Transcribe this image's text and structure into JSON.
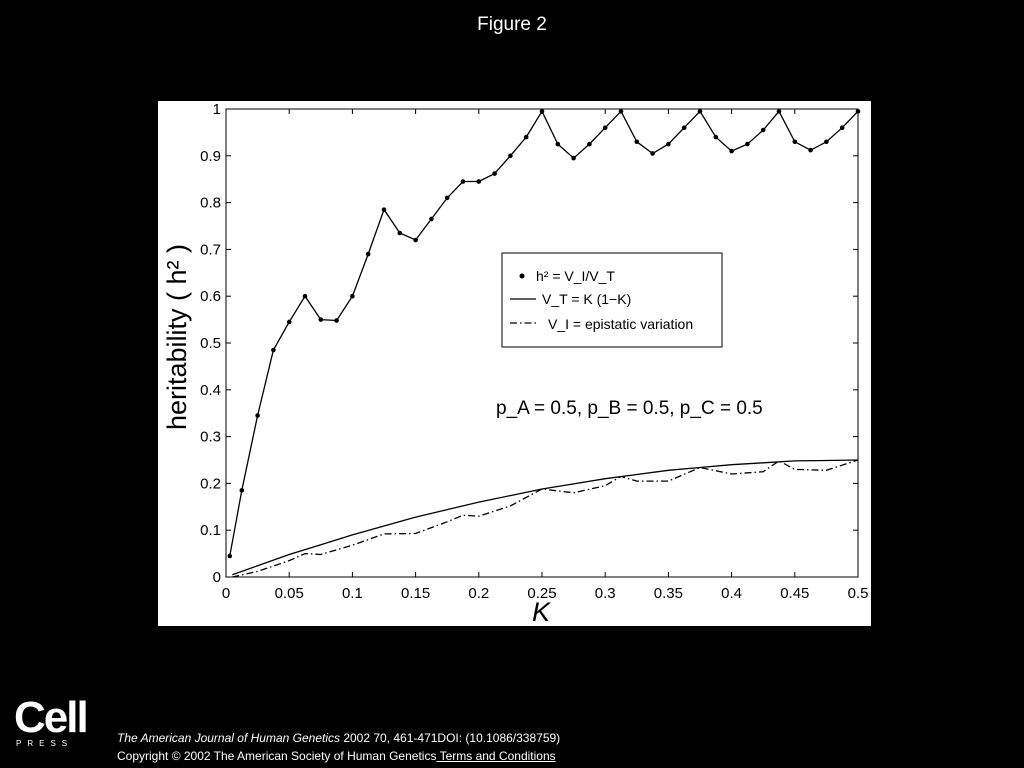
{
  "slide": {
    "title": "Figure 2"
  },
  "footer": {
    "logo_word": "Cell",
    "logo_sub": "PRESS",
    "journal": "The American Journal of Human Genetics",
    "citation_rest": " 2002 70, 461-471DOI: (10.1086/338759)",
    "copyright": "Copyright © 2002 The American Society of Human Genetics",
    "terms_link": " Terms and Conditions"
  },
  "chart_data": {
    "type": "line",
    "xlabel": "K",
    "ylabel": "heritability ( h² )",
    "xlim": [
      0,
      0.5
    ],
    "ylim": [
      0,
      1
    ],
    "xticks": [
      "0",
      "0.05",
      "0.1",
      "0.15",
      "0.2",
      "0.25",
      "0.3",
      "0.35",
      "0.4",
      "0.45",
      "0.5"
    ],
    "yticks": [
      "0",
      "0.1",
      "0.2",
      "0.3",
      "0.4",
      "0.5",
      "0.6",
      "0.7",
      "0.8",
      "0.9",
      "1"
    ],
    "grid": false,
    "legend_position": "center-right",
    "legend": {
      "h2": "h² = V_I/V_T",
      "vt": "V_T = K (1−K)",
      "vi": "V_I = epistatic variation"
    },
    "annotation": "p_A = 0.5, p_B = 0.5, p_C = 0.5",
    "series": [
      {
        "id": "h2",
        "style": "solid-with-dots",
        "x": [
          0.003,
          0.0125,
          0.025,
          0.0375,
          0.05,
          0.0625,
          0.075,
          0.0875,
          0.1,
          0.1125,
          0.125,
          0.1375,
          0.15,
          0.1625,
          0.175,
          0.1875,
          0.2,
          0.2125,
          0.225,
          0.2375,
          0.25,
          0.2625,
          0.275,
          0.2875,
          0.3,
          0.3125,
          0.325,
          0.3375,
          0.35,
          0.3625,
          0.375,
          0.3875,
          0.4,
          0.4125,
          0.425,
          0.4375,
          0.45,
          0.4625,
          0.475,
          0.4875,
          0.5
        ],
        "y": [
          0.045,
          0.185,
          0.345,
          0.485,
          0.545,
          0.6,
          0.55,
          0.548,
          0.6,
          0.69,
          0.785,
          0.735,
          0.72,
          0.765,
          0.81,
          0.845,
          0.845,
          0.862,
          0.9,
          0.94,
          0.995,
          0.925,
          0.895,
          0.925,
          0.96,
          0.995,
          0.93,
          0.905,
          0.925,
          0.96,
          0.995,
          0.94,
          0.91,
          0.925,
          0.955,
          0.995,
          0.93,
          0.912,
          0.93,
          0.96,
          0.995
        ]
      },
      {
        "id": "vt",
        "style": "solid",
        "x": [
          0.005,
          0.025,
          0.05,
          0.075,
          0.1,
          0.125,
          0.15,
          0.175,
          0.2,
          0.225,
          0.25,
          0.275,
          0.3,
          0.325,
          0.35,
          0.375,
          0.4,
          0.425,
          0.45,
          0.475,
          0.5
        ],
        "y": [
          0.005,
          0.024,
          0.048,
          0.069,
          0.09,
          0.109,
          0.128,
          0.144,
          0.16,
          0.174,
          0.188,
          0.199,
          0.21,
          0.219,
          0.228,
          0.234,
          0.24,
          0.244,
          0.248,
          0.249,
          0.25
        ]
      },
      {
        "id": "vi",
        "style": "dash-dot",
        "x": [
          0.005,
          0.025,
          0.05,
          0.0625,
          0.075,
          0.1,
          0.125,
          0.15,
          0.175,
          0.1875,
          0.2,
          0.225,
          0.25,
          0.275,
          0.3,
          0.3125,
          0.325,
          0.35,
          0.375,
          0.4,
          0.425,
          0.4375,
          0.45,
          0.475,
          0.5
        ],
        "y": [
          0.0,
          0.012,
          0.035,
          0.05,
          0.048,
          0.068,
          0.092,
          0.093,
          0.118,
          0.132,
          0.13,
          0.152,
          0.188,
          0.18,
          0.195,
          0.215,
          0.205,
          0.205,
          0.234,
          0.22,
          0.225,
          0.248,
          0.23,
          0.228,
          0.25
        ]
      }
    ]
  }
}
